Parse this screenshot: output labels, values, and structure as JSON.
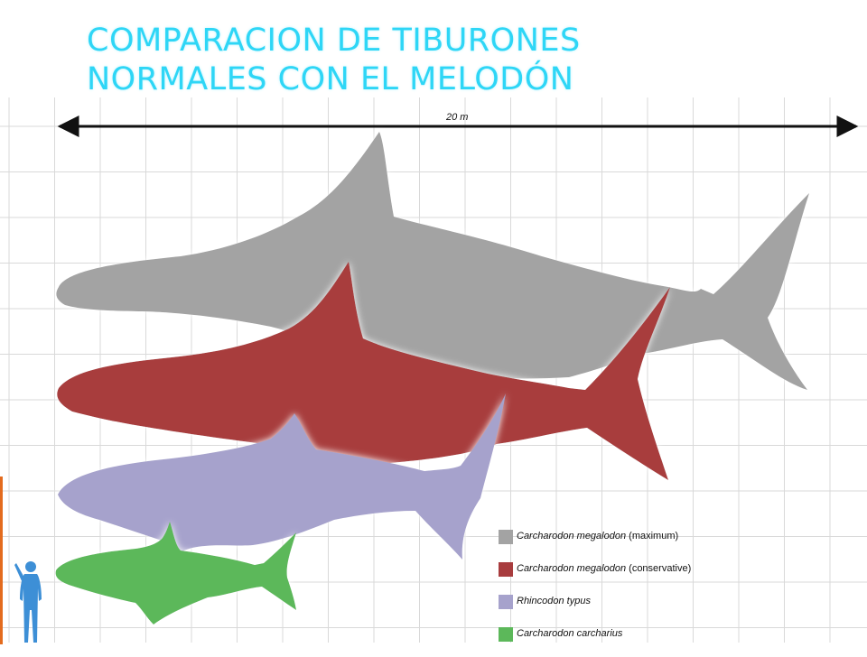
{
  "title": {
    "line1": "COMPARACION DE TIBURONES",
    "line2": "NORMALES CON EL MELODÓN"
  },
  "scale": {
    "label": "20 m"
  },
  "legend": [
    {
      "species": "Carcharodon megalodon",
      "note": " (maximum)",
      "color": "#a3a3a3"
    },
    {
      "species": "Carcharodon megalodon",
      "note": " (conservative)",
      "color": "#a83c3e"
    },
    {
      "species": "Rhincodon typus",
      "note": "",
      "color": "#a6a2cc"
    },
    {
      "species": "Carcharodon carcharius",
      "note": "",
      "color": "#5cb85a"
    }
  ],
  "colors": {
    "grid": "#d9d9d9",
    "human": "#3d8fd6",
    "title": "#2ed6f6",
    "accent_bar": "#e36b1e"
  },
  "icons": {
    "human": "human-silhouette-icon",
    "scale": "double-arrow-icon"
  }
}
